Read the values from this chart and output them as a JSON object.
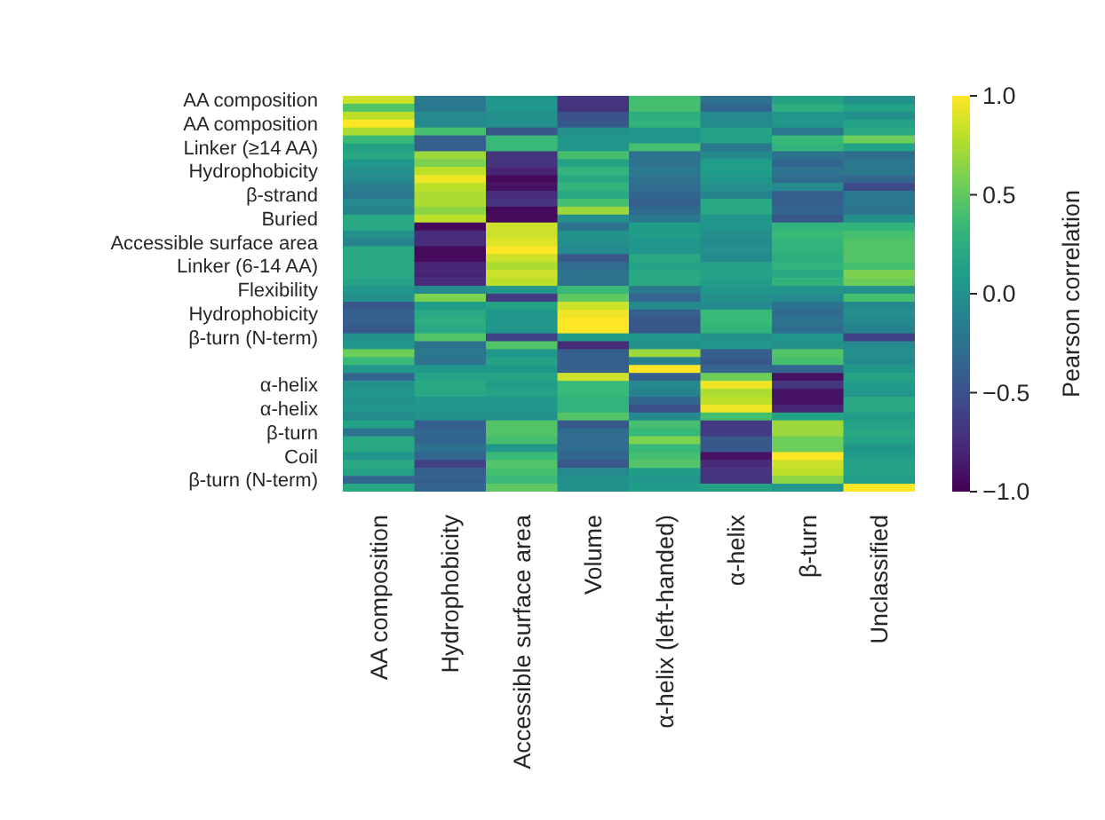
{
  "chart_data": {
    "type": "heatmap",
    "categories": [
      "AA composition",
      "Hydrophobicity",
      "Accessible surface area",
      "Volume",
      "α-helix (left-handed)",
      "α-helix",
      "β-turn",
      "Unclassified"
    ],
    "y_categories": [
      "AA composition",
      null,
      null,
      "AA composition",
      null,
      null,
      "Linker (≥14 AA)",
      null,
      null,
      "Hydrophobicity",
      null,
      null,
      "β-strand",
      null,
      null,
      "Buried",
      null,
      null,
      "Accessible surface area",
      null,
      null,
      "Linker (6-14 AA)",
      null,
      null,
      "Flexibility",
      null,
      null,
      "Hydrophobicity",
      null,
      null,
      "β-turn (N-term)",
      null,
      null,
      null,
      null,
      null,
      "α-helix",
      null,
      null,
      "α-helix",
      null,
      null,
      "β-turn",
      null,
      null,
      "Coil",
      null,
      null,
      "β-turn (N-term)",
      null
    ],
    "cells": [
      [
        0.85,
        -0.2,
        0.05,
        -0.7,
        0.4,
        -0.25,
        0.15,
        0.0
      ],
      [
        0.45,
        -0.2,
        0.05,
        -0.7,
        0.4,
        -0.35,
        0.25,
        0.15
      ],
      [
        0.8,
        -0.05,
        0.0,
        -0.5,
        0.25,
        -0.05,
        0.05,
        0.0
      ],
      [
        1.0,
        -0.05,
        0.0,
        -0.45,
        0.3,
        -0.05,
        0.05,
        0.15
      ],
      [
        0.75,
        0.4,
        -0.45,
        0.0,
        0.05,
        0.15,
        -0.2,
        0.2
      ],
      [
        0.35,
        -0.4,
        0.35,
        0.05,
        0.05,
        0.15,
        0.35,
        0.55
      ],
      [
        0.15,
        -0.4,
        0.35,
        0.05,
        0.4,
        -0.2,
        0.3,
        0.15
      ],
      [
        0.2,
        0.7,
        -0.7,
        0.4,
        -0.25,
        -0.05,
        -0.25,
        -0.3
      ],
      [
        0.05,
        0.6,
        -0.7,
        0.15,
        -0.25,
        0.1,
        -0.35,
        -0.2
      ],
      [
        0.0,
        0.8,
        -0.8,
        0.3,
        -0.2,
        0.1,
        -0.25,
        -0.2
      ],
      [
        -0.05,
        0.95,
        -0.95,
        0.2,
        -0.25,
        0.05,
        -0.3,
        -0.35
      ],
      [
        -0.15,
        0.8,
        -0.9,
        0.3,
        -0.3,
        0.0,
        -0.05,
        -0.55
      ],
      [
        -0.2,
        0.75,
        -0.75,
        0.2,
        -0.35,
        -0.1,
        -0.4,
        -0.2
      ],
      [
        -0.05,
        0.75,
        -0.7,
        0.4,
        -0.4,
        0.2,
        -0.4,
        -0.2
      ],
      [
        -0.1,
        0.65,
        -0.95,
        0.7,
        -0.3,
        0.2,
        -0.35,
        -0.25
      ],
      [
        0.2,
        0.8,
        -0.95,
        0.0,
        -0.2,
        0.05,
        -0.45,
        0.0
      ],
      [
        0.2,
        -0.95,
        0.85,
        -0.25,
        0.1,
        0.05,
        0.3,
        0.3
      ],
      [
        0.0,
        -0.75,
        0.85,
        0.0,
        0.1,
        0.0,
        0.35,
        0.4
      ],
      [
        -0.1,
        -0.75,
        0.9,
        0.0,
        0.05,
        -0.05,
        0.3,
        0.45
      ],
      [
        0.2,
        -0.95,
        1.0,
        -0.05,
        0.05,
        0.0,
        0.3,
        0.45
      ],
      [
        0.2,
        -0.95,
        0.85,
        -0.45,
        0.2,
        -0.05,
        0.25,
        0.45
      ],
      [
        0.2,
        -0.8,
        0.75,
        -0.3,
        0.15,
        0.15,
        0.3,
        0.4
      ],
      [
        0.2,
        -0.8,
        0.85,
        -0.25,
        0.2,
        0.15,
        0.2,
        0.6
      ],
      [
        0.15,
        -0.75,
        0.8,
        -0.25,
        0.2,
        0.1,
        0.3,
        0.55
      ],
      [
        0.05,
        -0.05,
        0.05,
        0.35,
        -0.2,
        0.05,
        0.05,
        0.0
      ],
      [
        0.0,
        0.6,
        -0.65,
        0.5,
        -0.35,
        0.0,
        -0.05,
        0.4
      ],
      [
        -0.45,
        0.1,
        0.15,
        0.85,
        -0.05,
        -0.05,
        -0.25,
        -0.05
      ],
      [
        -0.4,
        0.2,
        0.05,
        0.95,
        -0.4,
        0.35,
        -0.3,
        0.0
      ],
      [
        -0.4,
        0.25,
        0.05,
        1.0,
        -0.45,
        0.35,
        -0.25,
        -0.05
      ],
      [
        -0.45,
        0.2,
        0.05,
        1.0,
        -0.45,
        0.3,
        -0.3,
        -0.1
      ],
      [
        0.0,
        0.45,
        -0.6,
        0.1,
        0.05,
        0.0,
        0.05,
        -0.6
      ],
      [
        0.05,
        -0.25,
        0.45,
        -0.75,
        0.0,
        0.05,
        0.0,
        -0.05
      ],
      [
        0.55,
        -0.2,
        0.05,
        -0.4,
        0.7,
        -0.4,
        0.45,
        0.0
      ],
      [
        0.35,
        -0.25,
        0.15,
        -0.4,
        -0.1,
        -0.45,
        0.4,
        -0.05
      ],
      [
        0.05,
        0.05,
        0.05,
        -0.4,
        1.0,
        -0.35,
        -0.35,
        0.05
      ],
      [
        -0.35,
        0.15,
        0.15,
        0.85,
        -0.4,
        0.55,
        -0.9,
        0.15
      ],
      [
        0.0,
        0.2,
        0.1,
        0.35,
        -0.05,
        0.95,
        -0.7,
        0.1
      ],
      [
        0.05,
        0.2,
        0.15,
        0.35,
        -0.1,
        0.75,
        -0.9,
        0.05
      ],
      [
        0.0,
        0.05,
        0.05,
        0.3,
        -0.35,
        0.8,
        -0.9,
        0.2
      ],
      [
        0.05,
        0.05,
        0.05,
        0.3,
        -0.5,
        0.95,
        -0.8,
        0.2
      ],
      [
        -0.05,
        0.0,
        0.0,
        0.45,
        -0.05,
        0.4,
        0.15,
        0.1
      ],
      [
        0.15,
        -0.4,
        0.45,
        -0.45,
        0.4,
        -0.65,
        0.7,
        0.15
      ],
      [
        -0.25,
        -0.35,
        0.45,
        -0.3,
        0.35,
        -0.65,
        0.7,
        0.2
      ],
      [
        0.2,
        -0.35,
        0.4,
        -0.3,
        0.6,
        -0.45,
        0.55,
        0.15
      ],
      [
        0.2,
        -0.25,
        0.05,
        -0.3,
        0.35,
        -0.45,
        0.55,
        0.05
      ],
      [
        0.05,
        -0.35,
        0.35,
        -0.35,
        0.4,
        -0.9,
        1.0,
        0.1
      ],
      [
        0.2,
        -0.6,
        0.45,
        -0.45,
        0.45,
        -0.75,
        0.85,
        0.15
      ],
      [
        0.15,
        -0.4,
        0.4,
        -0.05,
        0.1,
        -0.7,
        0.8,
        0.15
      ],
      [
        -0.35,
        -0.4,
        0.35,
        0.0,
        0.05,
        -0.7,
        0.65,
        0.1
      ],
      [
        0.2,
        -0.35,
        0.5,
        0.0,
        0.1,
        0.15,
        0.05,
        1.0
      ]
    ],
    "clim": [
      -1,
      1
    ],
    "cticks": [
      {
        "value": -1,
        "label": "−1.0"
      },
      {
        "value": -0.5,
        "label": "−0.5"
      },
      {
        "value": 0,
        "label": "0.0"
      },
      {
        "value": 0.5,
        "label": "0.5"
      },
      {
        "value": 1,
        "label": "1.0"
      }
    ],
    "clabel": "Pearson correlation"
  }
}
